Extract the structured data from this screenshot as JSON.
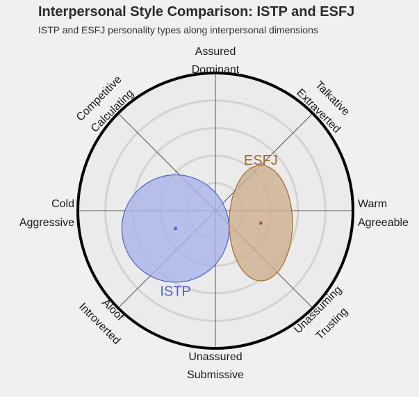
{
  "chart_data": {
    "type": "scatter",
    "title": "Interpersonal Style Comparison: ISTP and ESFJ",
    "subtitle": "ISTP and ESFJ personality types along interpersonal dimensions",
    "axis_labels": {
      "top": [
        "Assured",
        "Dominant"
      ],
      "top_right": [
        "Talkative",
        "Extraverted"
      ],
      "right": [
        "Warm",
        "Agreeable"
      ],
      "bottom_right": [
        "Unassuming",
        "Trusting"
      ],
      "bottom": [
        "Unassured",
        "Submissive"
      ],
      "bottom_left": [
        "Aloof",
        "Introverted"
      ],
      "left": [
        "Cold",
        "Aggressive"
      ],
      "top_left": [
        "Competitive",
        "Calculating"
      ]
    },
    "series": [
      {
        "name": "ISTP",
        "x": -0.29,
        "y": -0.13,
        "rx": 0.39,
        "ry": 0.39,
        "color": "#4a63d0",
        "fill": "#a9b4ea"
      },
      {
        "name": "ESFJ",
        "x": 0.33,
        "y": -0.09,
        "rx": 0.23,
        "ry": 0.42,
        "color": "#a56a24",
        "fill": "#cdb08f"
      }
    ],
    "xlim": [
      -1,
      1
    ],
    "ylim": [
      -1,
      1
    ],
    "rings": [
      0.2,
      0.4,
      0.6,
      0.8
    ],
    "grid": true
  }
}
